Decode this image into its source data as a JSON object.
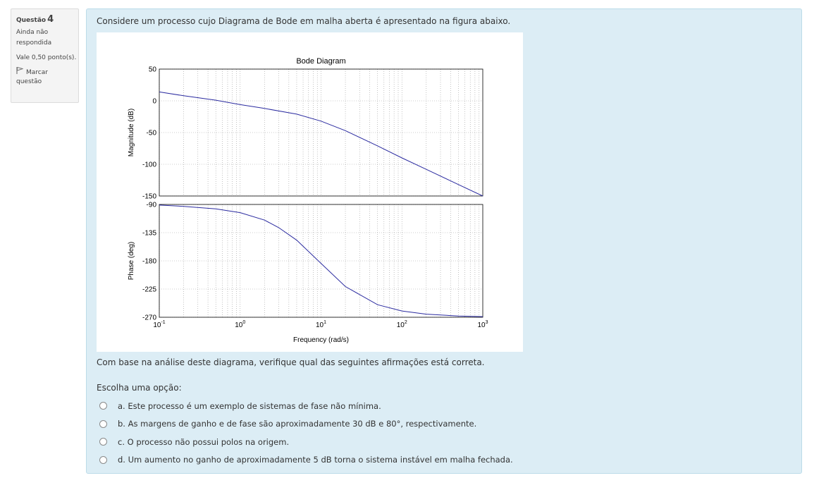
{
  "question_info": {
    "label": "Questão",
    "number": "4",
    "status_line1": "Ainda não",
    "status_line2": "respondida",
    "grade": "Vale 0,50 ponto(s).",
    "flag_line1": "Marcar",
    "flag_line2": "questão"
  },
  "question": {
    "text": "Considere um processo cujo Diagrama de Bode em malha aberta é apresentado na figura abaixo.",
    "after_text": "Com base na análise deste diagrama, verifique qual das seguintes afirmações está correta.",
    "prompt": "Escolha uma opção:",
    "options": [
      "a. Este processo é um exemplo de sistemas de fase não mínima.",
      "b. As margens de ganho e de fase são aproximadamente 30 dB e 80°, respectivamente.",
      "c. O processo não possui polos na origem.",
      "d. Um aumento no ganho de aproximadamente 5 dB torna o sistema instável em malha fechada."
    ]
  },
  "chart_data": {
    "type": "line",
    "title": "Bode Diagram",
    "xlabel": "Frequency  (rad/s)",
    "x_scale": "log",
    "x_ticks": [
      "10^-1",
      "10^0",
      "10^1",
      "10^2",
      "10^3"
    ],
    "xlim": [
      0.1,
      1000
    ],
    "grid": true,
    "subplots": [
      {
        "ylabel": "Magnitude (dB)",
        "ylim": [
          -150,
          50
        ],
        "yticks": [
          50,
          0,
          -50,
          -100,
          -150
        ],
        "series": [
          {
            "x": [
              0.1,
              0.2,
              0.5,
              1,
              2,
              5,
              10,
              20,
              50,
              100,
              200,
              500,
              1000
            ],
            "values": [
              14,
              8,
              1,
              -6,
              -12,
              -21,
              -32,
              -47,
              -71,
              -90,
              -108,
              -132,
              -150
            ]
          }
        ]
      },
      {
        "ylabel": "Phase (deg)",
        "ylim": [
          -270,
          -90
        ],
        "yticks": [
          -90,
          -135,
          -180,
          -225,
          -270
        ],
        "series": [
          {
            "x": [
              0.1,
              0.2,
              0.5,
              1,
              2,
              3,
              5,
              10,
              20,
              50,
              100,
              200,
              500,
              1000
            ],
            "values": [
              -91,
              -93,
              -97,
              -103,
              -115,
              -127,
              -147,
              -184,
              -221,
              -250,
              -260,
              -265,
              -268,
              -269
            ]
          }
        ]
      }
    ]
  }
}
